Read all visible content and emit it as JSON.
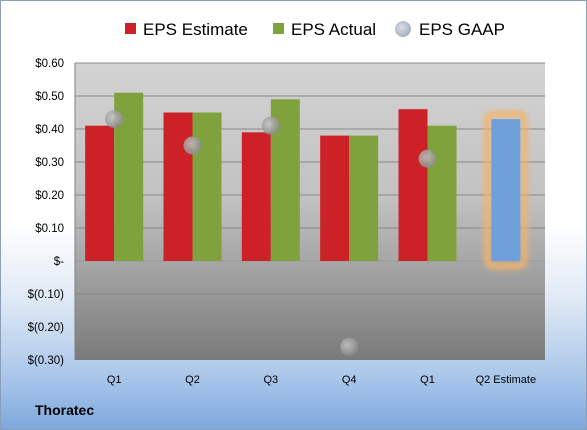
{
  "company": "Thoratec",
  "colors": {
    "estimate": "#cc2127",
    "actual": "#7fa23c",
    "gaap": "#a9a9a9",
    "projection": "#6fa0dc",
    "projection_glow": "#f3b36a"
  },
  "chart_data": {
    "type": "bar",
    "categories": [
      "Q1",
      "Q2",
      "Q3",
      "Q4",
      "Q1",
      "Q2 Estimate"
    ],
    "series": [
      {
        "name": "EPS Estimate",
        "values": [
          0.41,
          0.45,
          0.39,
          0.38,
          0.46,
          0.43
        ]
      },
      {
        "name": "EPS Actual",
        "values": [
          0.51,
          0.45,
          0.49,
          0.38,
          0.41,
          null
        ]
      },
      {
        "name": "EPS GAAP",
        "type": "scatter",
        "values": [
          0.43,
          0.35,
          0.41,
          -0.26,
          0.31,
          null
        ]
      }
    ],
    "yticks": [
      0.6,
      0.5,
      0.4,
      0.3,
      0.2,
      0.1,
      0,
      -0.1,
      -0.2,
      -0.3
    ],
    "ytick_labels": [
      "$0.60",
      "$0.50",
      "$0.40",
      "$0.30",
      "$0.20",
      "$0.10",
      "$-",
      "$(0.10)",
      "$(0.20)",
      "$(0.30)"
    ],
    "ylim": [
      -0.3,
      0.6
    ],
    "grid": true,
    "legend_position": "top"
  }
}
